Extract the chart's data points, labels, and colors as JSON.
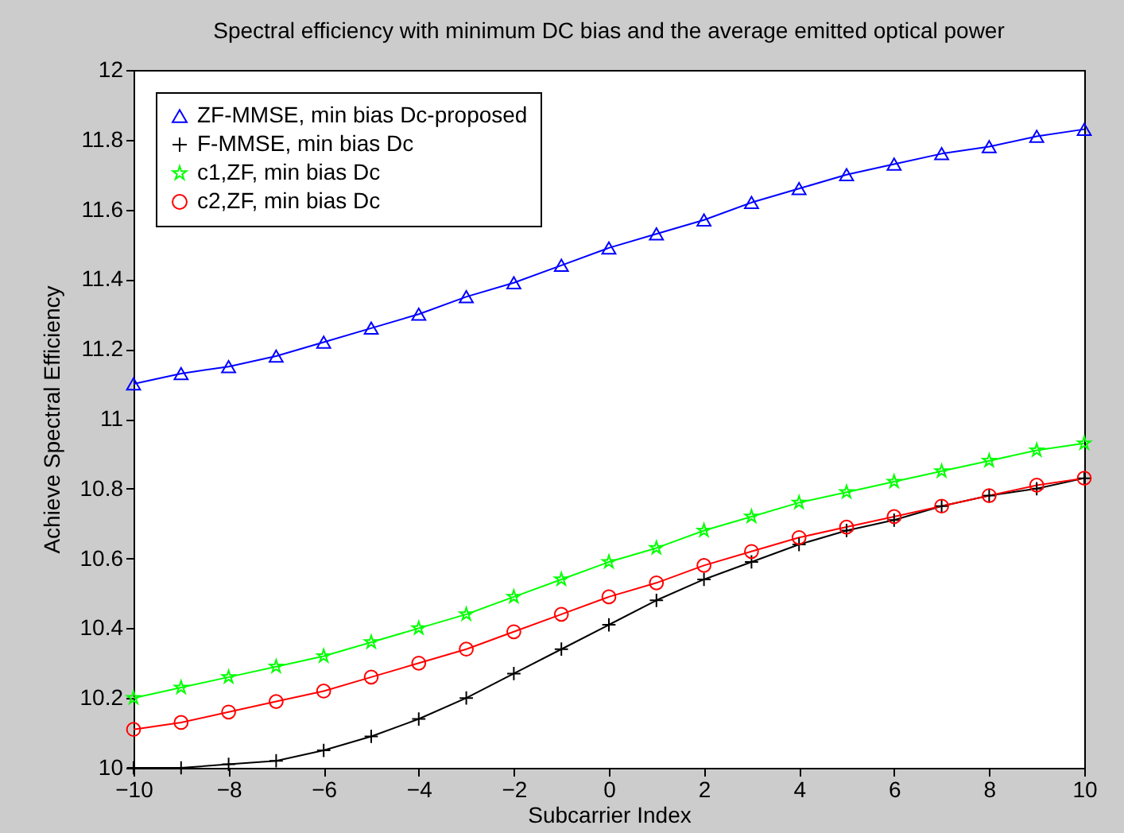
{
  "chart_data": {
    "type": "line",
    "title": "Spectral efficiency with minimum DC bias and the average emitted optical power",
    "xlabel": "Subcarrier Index",
    "ylabel": "Achieve Spectral Efficiency",
    "x": [
      -10,
      -9,
      -8,
      -7,
      -6,
      -5,
      -4,
      -3,
      -2,
      -1,
      0,
      1,
      2,
      3,
      4,
      5,
      6,
      7,
      8,
      9,
      10
    ],
    "series": [
      {
        "name": "ZF-MMSE, min bias Dc-proposed",
        "color": "#0000ff",
        "marker": "triangle",
        "values": [
          11.1,
          11.13,
          11.15,
          11.18,
          11.22,
          11.26,
          11.3,
          11.35,
          11.39,
          11.44,
          11.49,
          11.53,
          11.57,
          11.62,
          11.66,
          11.7,
          11.73,
          11.76,
          11.78,
          11.81,
          11.83
        ]
      },
      {
        "name": "F-MMSE, min bias Dc",
        "color": "#000000",
        "marker": "cross",
        "values": [
          10.0,
          10.0,
          10.01,
          10.02,
          10.05,
          10.09,
          10.14,
          10.2,
          10.27,
          10.34,
          10.41,
          10.48,
          10.54,
          10.59,
          10.64,
          10.68,
          10.71,
          10.75,
          10.78,
          10.8,
          10.83
        ]
      },
      {
        "name": "c1,ZF, min bias Dc",
        "color": "#00ff00",
        "marker": "star",
        "values": [
          10.2,
          10.23,
          10.26,
          10.29,
          10.32,
          10.36,
          10.4,
          10.44,
          10.49,
          10.54,
          10.59,
          10.63,
          10.68,
          10.72,
          10.76,
          10.79,
          10.82,
          10.85,
          10.88,
          10.91,
          10.93
        ]
      },
      {
        "name": "c2,ZF, min bias Dc",
        "color": "#ff0000",
        "marker": "circle",
        "values": [
          10.11,
          10.13,
          10.16,
          10.19,
          10.22,
          10.26,
          10.3,
          10.34,
          10.39,
          10.44,
          10.49,
          10.53,
          10.58,
          10.62,
          10.66,
          10.69,
          10.72,
          10.75,
          10.78,
          10.81,
          10.83
        ]
      }
    ],
    "xlim": [
      -10,
      10
    ],
    "xticks": [
      -10,
      -8,
      -6,
      -4,
      -2,
      0,
      2,
      4,
      6,
      8,
      10
    ],
    "ylim": [
      10,
      12
    ],
    "yticks": [
      10,
      10.2,
      10.4,
      10.6,
      10.8,
      11,
      11.2,
      11.4,
      11.6,
      11.8,
      12
    ],
    "grid": false,
    "legend": "top left",
    "line_style": "solid"
  }
}
